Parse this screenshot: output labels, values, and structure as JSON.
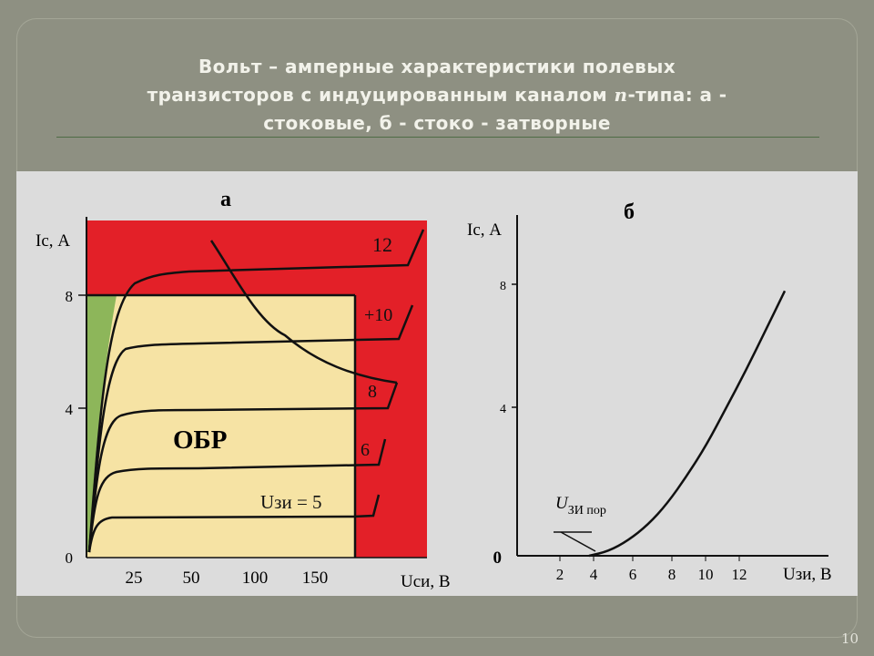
{
  "slide": {
    "title_part1": "Вольт – амперные характеристики полевых",
    "title_part2": "транзисторов с индуцированным каналом ",
    "title_n": "n",
    "title_part3": "-типа: а -",
    "title_part4": "стоковые, б - стоко - затворные",
    "slide_number": "10"
  },
  "colors": {
    "red_zone": "#e32028",
    "safe_zone": "#f6e3a4",
    "green_zone": "#8db65a",
    "curve": "#111111"
  },
  "chart_a": {
    "label": "а",
    "ylabel": "Ic, А",
    "xlabel": "Uси, В",
    "y_ticks": [
      "0",
      "4",
      "8"
    ],
    "x_ticks": [
      "25",
      "50",
      "100",
      "150"
    ],
    "region_label": "ОБР",
    "curve_labels": [
      "12",
      "+10",
      "8",
      "6",
      "Uзи = 5"
    ]
  },
  "chart_b": {
    "label": "б",
    "ylabel": "Ic, А",
    "xlabel": "Uзи, В",
    "y_ticks": [
      "0",
      "4",
      "8"
    ],
    "x_ticks": [
      "2",
      "4",
      "6",
      "8",
      "10",
      "12"
    ],
    "threshold_prefix": "U",
    "threshold_sub": "ЗИ пор"
  },
  "chart_data": [
    {
      "type": "line",
      "xlabel": "Uси, В",
      "ylabel": "Ic, А",
      "ylim": [
        0,
        12
      ],
      "series": [
        {
          "name": "Uзи = 5",
          "saturation_current": 1.5
        },
        {
          "name": "6",
          "saturation_current": 3.2
        },
        {
          "name": "8",
          "saturation_current": 5.0
        },
        {
          "name": "+10",
          "saturation_current": 7.0
        },
        {
          "name": "12",
          "saturation_current": 9.6
        }
      ]
    },
    {
      "type": "line",
      "xlabel": "Uзи, В",
      "ylabel": "Ic, А",
      "xlim": [
        0,
        14
      ],
      "ylim": [
        0,
        11
      ],
      "x": [
        4,
        5,
        6,
        7,
        8,
        9,
        10,
        11,
        12,
        13,
        14
      ],
      "values": [
        0,
        0.15,
        0.5,
        1.0,
        1.7,
        2.6,
        3.6,
        4.8,
        6.0,
        7.3,
        8.6
      ]
    }
  ]
}
